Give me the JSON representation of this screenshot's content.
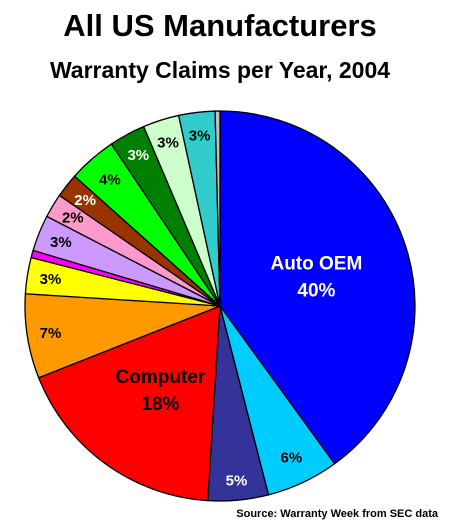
{
  "chart_data": {
    "type": "pie",
    "title": "All US Manufacturers",
    "subtitle": "Warranty Claims per Year, 2004",
    "source": "Source: Warranty Week from SEC data",
    "slices": [
      {
        "name": "Auto OEM",
        "value": 40,
        "label": "40%",
        "color": "#0000ff"
      },
      {
        "name": "",
        "value": 6,
        "label": "6%",
        "color": "#00ccff"
      },
      {
        "name": "",
        "value": 5,
        "label": "5%",
        "color": "#333399"
      },
      {
        "name": "Computer",
        "value": 18,
        "label": "18%",
        "color": "#ff0000"
      },
      {
        "name": "",
        "value": 7,
        "label": "7%",
        "color": "#ff9900"
      },
      {
        "name": "",
        "value": 3,
        "label": "3%",
        "color": "#ffff00"
      },
      {
        "name": "",
        "value": 0.6,
        "label": "",
        "color": "#ff00ff"
      },
      {
        "name": "",
        "value": 3,
        "label": "3%",
        "color": "#cc99ff"
      },
      {
        "name": "",
        "value": 2,
        "label": "2%",
        "color": "#ff99cc"
      },
      {
        "name": "",
        "value": 2,
        "label": "2%",
        "color": "#993300"
      },
      {
        "name": "",
        "value": 4,
        "label": "4%",
        "color": "#00ff00"
      },
      {
        "name": "",
        "value": 3,
        "label": "3%",
        "color": "#008000"
      },
      {
        "name": "",
        "value": 3,
        "label": "3%",
        "color": "#ccffcc"
      },
      {
        "name": "",
        "value": 3,
        "label": "3%",
        "color": "#33cccc"
      },
      {
        "name": "",
        "value": 0.4,
        "label": "",
        "color": "#c0c0c0"
      }
    ]
  }
}
